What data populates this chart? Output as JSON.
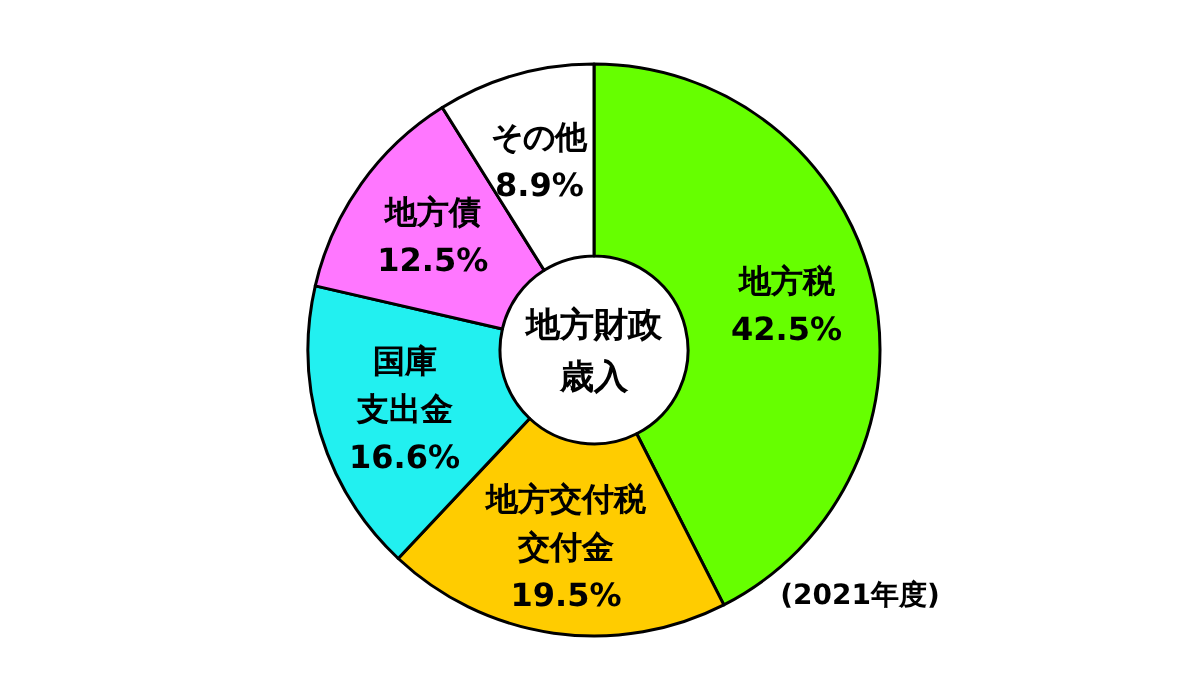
{
  "chart_data": {
    "type": "donut",
    "title": "地方財政歳入",
    "categories": [
      "地方税",
      "地方交付税交付金",
      "国庫支出金",
      "地方債",
      "その他"
    ],
    "values": [
      42.5,
      19.5,
      16.6,
      12.5,
      8.9
    ],
    "value_labels": [
      "42.5%",
      "19.5%",
      "16.6%",
      "12.5%",
      "8.9%"
    ],
    "colors": [
      "#66ff00",
      "#ffcc00",
      "#22f0f0",
      "#ff77ff",
      "#ffffff"
    ],
    "annotations": [
      "(2021年度)"
    ]
  }
}
